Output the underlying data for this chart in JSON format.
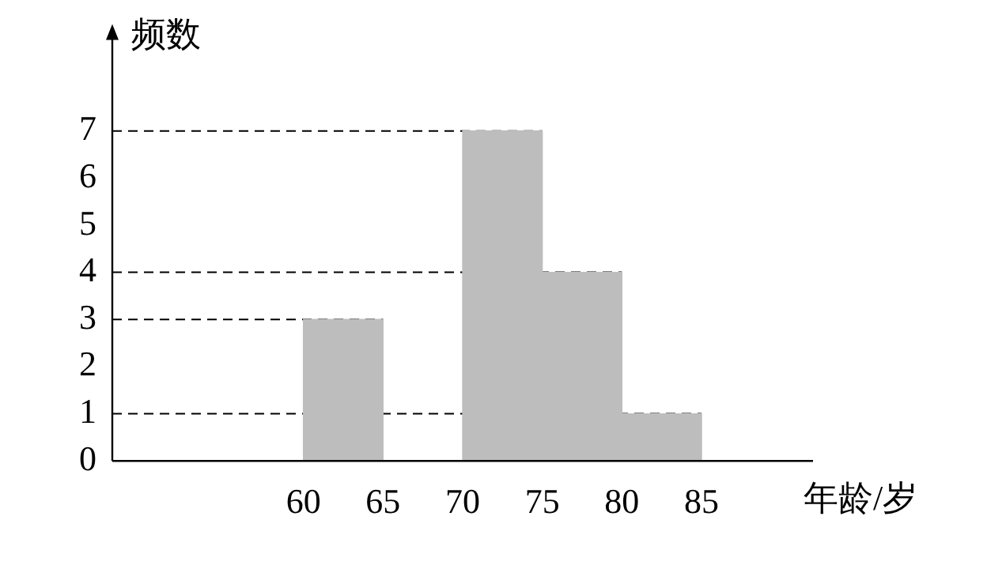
{
  "chart_data": {
    "type": "histogram",
    "xlabel": "年龄/岁",
    "ylabel": "频数",
    "bins": [
      60,
      65,
      70,
      75,
      80,
      85
    ],
    "values": [
      3,
      0,
      7,
      4,
      1
    ],
    "color": "#bdbdbd",
    "xlim": [
      48,
      92
    ],
    "xticks": [
      60,
      65,
      70,
      75,
      80,
      85
    ],
    "ylim": [
      0,
      9
    ],
    "yticks": [
      0,
      1,
      2,
      3,
      4,
      5,
      6,
      7
    ],
    "ref_lines": [
      {
        "axis": "y",
        "value": 1,
        "line_style": "dashed"
      },
      {
        "axis": "y",
        "value": 3,
        "line_style": "dashed"
      },
      {
        "axis": "y",
        "value": 4,
        "line_style": "dashed"
      },
      {
        "axis": "y",
        "value": 7,
        "line_style": "dashed"
      }
    ],
    "grid": false,
    "legend": false
  }
}
